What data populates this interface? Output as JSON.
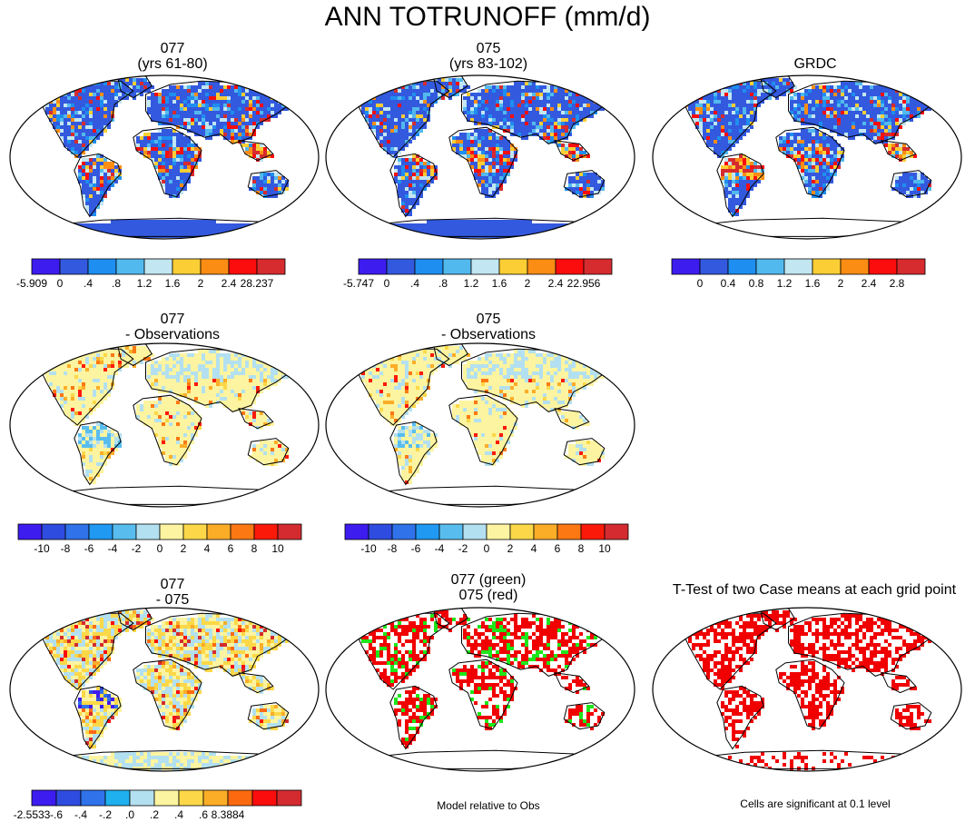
{
  "title": "ANN TOTRUNOFF (mm/d)",
  "colors": {
    "abs": [
      "#3d1cf0",
      "#3359de",
      "#1e8ef0",
      "#52b9ee",
      "#c2e6f2",
      "#fcce35",
      "#fc8d14",
      "#fb0d0d",
      "#d62b2f"
    ],
    "diff": [
      "#3d1cf0",
      "#2f4ce0",
      "#2f72ea",
      "#1f99f2",
      "#58bdee",
      "#b3e0f0",
      "#fcf4a0",
      "#fcd848",
      "#fcad28",
      "#fc7812",
      "#fb1a0a",
      "#d32b2f"
    ],
    "model_diff": [
      "#3d1cf0",
      "#2f4ce0",
      "#2f72ea",
      "#1fb0ef",
      "#b3e0f0",
      "#fcf4a0",
      "#fcd848",
      "#fcad28",
      "#fc6a10",
      "#fb0d0d",
      "#d32b2f"
    ],
    "green": "#1ee61a",
    "red": "#f00000"
  },
  "panels": [
    {
      "title": [
        "077",
        "(yrs 61-80)"
      ],
      "labels": [
        "-5.909",
        "0",
        ".4",
        ".8",
        "1.2",
        "1.6",
        "2",
        "2.4",
        "28.237"
      ],
      "palette": "abs"
    },
    {
      "title": [
        "075",
        "(yrs 83-102)"
      ],
      "labels": [
        "-5.747",
        "0",
        ".4",
        ".8",
        "1.2",
        "1.6",
        "2",
        "2.4",
        "22.956"
      ],
      "palette": "abs"
    },
    {
      "title": [
        "GRDC"
      ],
      "labels": [
        "0",
        "0.4",
        "0.8",
        "1.2",
        "1.6",
        "2",
        "2.4",
        "2.8"
      ],
      "palette": "abs"
    },
    {
      "title": [
        "077",
        "- Observations"
      ],
      "labels": [
        "-10",
        "-8",
        "-6",
        "-4",
        "-2",
        "0",
        "2",
        "4",
        "6",
        "8",
        "10"
      ],
      "palette": "diff"
    },
    {
      "title": [
        "075",
        "- Observations"
      ],
      "labels": [
        "-10",
        "-8",
        "-6",
        "-4",
        "-2",
        "0",
        "2",
        "4",
        "6",
        "8",
        "10"
      ],
      "palette": "diff"
    },
    {
      "title": [
        "077",
        "- 075"
      ],
      "labels": [
        "-2.5533",
        "-.6",
        "-.4",
        "-.2",
        ".0",
        ".2",
        ".4",
        ".6",
        "8.3884"
      ],
      "palette": "model_diff"
    },
    {
      "title": [
        "077 (green)",
        "075 (red)"
      ],
      "footer": "Model relative to Obs"
    },
    {
      "title": [
        "T-Test of two Case means at each grid point"
      ],
      "footer": "Cells are significant at 0.1 level"
    }
  ]
}
